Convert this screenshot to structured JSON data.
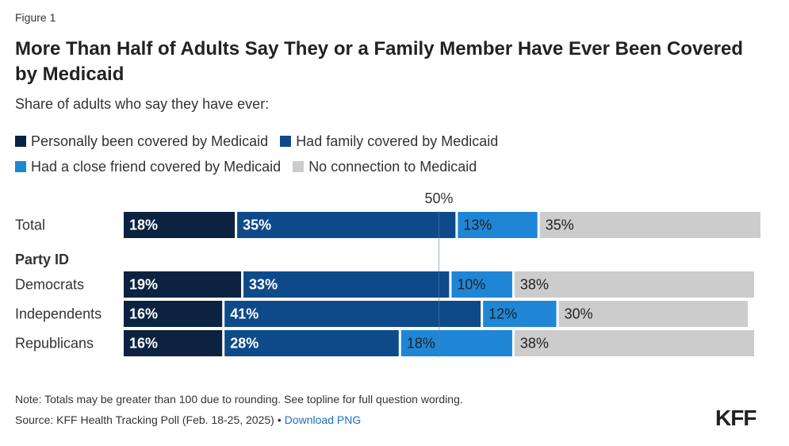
{
  "figure_label": "Figure 1",
  "colors": {
    "personal": "#0b2240",
    "family": "#0e4a8a",
    "friend": "#1f86d6",
    "none": "#cccccc",
    "ref_line": "#5c7fa8"
  },
  "note": "Note: Totals may be greater than 100 due to rounding. See topline for full question wording.",
  "source": "Source: KFF Health Tracking Poll (Feb. 18-25, 2025)",
  "source_separator": "•",
  "download_link": "Download PNG",
  "logo": "KFF",
  "chart_data": {
    "type": "bar",
    "orientation": "horizontal",
    "stacked": true,
    "title": "More Than Half of Adults Say They or a Family Member Have Ever Been Covered by Medicaid",
    "subtitle": "Share of adults who say they have ever:",
    "categories": [
      "Total",
      "Democrats",
      "Independents",
      "Republicans"
    ],
    "group_label": "Party ID",
    "series": [
      {
        "name": "Personally been covered by Medicaid",
        "key": "personal",
        "values": [
          18,
          19,
          16,
          16
        ],
        "labels": [
          "18%",
          "19%",
          "16%",
          "16%"
        ]
      },
      {
        "name": "Had family covered by Medicaid",
        "key": "family",
        "values": [
          35,
          33,
          41,
          28
        ],
        "labels": [
          "35%",
          "33%",
          "41%",
          "28%"
        ]
      },
      {
        "name": "Had a close friend covered by Medicaid",
        "key": "friend",
        "values": [
          13,
          10,
          12,
          18
        ],
        "labels": [
          "13%",
          "10%",
          "12%",
          "18%"
        ]
      },
      {
        "name": "No connection to Medicaid",
        "key": "none",
        "values": [
          35,
          38,
          30,
          38
        ],
        "labels": [
          "35%",
          "38%",
          "30%",
          "38%"
        ]
      }
    ],
    "reference_line": {
      "value": 50,
      "label": "50%"
    },
    "xlim": [
      0,
      101
    ],
    "legend_position": "top"
  }
}
